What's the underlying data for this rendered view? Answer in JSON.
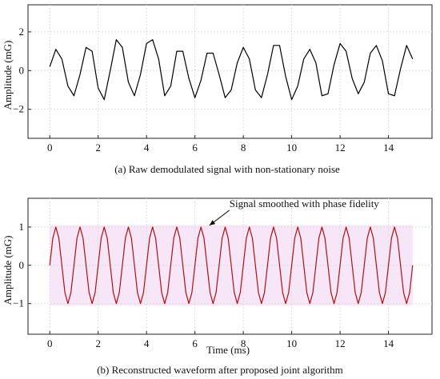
{
  "chart_data": [
    {
      "type": "line",
      "title": "",
      "caption": "(a) Raw demodulated signal with non-stationary noise",
      "xlabel": "",
      "ylabel": "Amplitude (mG)",
      "xlim": [
        -0.9,
        15.8
      ],
      "ylim": [
        -3.5,
        3.4
      ],
      "xticks": [
        0,
        2,
        4,
        6,
        8,
        10,
        12,
        14
      ],
      "yticks": [
        -2,
        0,
        2
      ],
      "grid": true,
      "series": [
        {
          "color": "#000000",
          "x": [
            0,
            0.25,
            0.5,
            0.75,
            1,
            1.25,
            1.5,
            1.75,
            2,
            2.25,
            2.5,
            2.75,
            3,
            3.25,
            3.5,
            3.75,
            4,
            4.25,
            4.5,
            4.75,
            5,
            5.25,
            5.5,
            5.75,
            6,
            6.25,
            6.5,
            6.75,
            7,
            7.25,
            7.5,
            7.75,
            8,
            8.25,
            8.5,
            8.75,
            9,
            9.25,
            9.5,
            9.75,
            10,
            10.25,
            10.5,
            10.75,
            11,
            11.25,
            11.5,
            11.75,
            12,
            12.25,
            12.5,
            12.75,
            13,
            13.25,
            13.5,
            13.75,
            14,
            14.25,
            14.5,
            14.75,
            15
          ],
          "y": [
            0.2,
            1.1,
            0.6,
            -0.8,
            -1.3,
            -0.2,
            1.2,
            1.0,
            -0.9,
            -1.5,
            0.0,
            1.6,
            1.2,
            -0.6,
            -1.3,
            -0.2,
            1.4,
            1.6,
            0.6,
            -1.3,
            -0.8,
            1.0,
            1.0,
            -0.4,
            -1.4,
            -0.5,
            0.9,
            0.9,
            -0.2,
            -1.4,
            -1.0,
            0.4,
            1.2,
            0.6,
            -1.0,
            -1.4,
            -0.2,
            1.3,
            1.3,
            -0.3,
            -1.5,
            -0.8,
            0.6,
            1.1,
            0.4,
            -1.3,
            -1.2,
            0.3,
            1.4,
            1.0,
            -0.4,
            -1.2,
            -0.6,
            0.9,
            1.3,
            0.5,
            -1.2,
            -1.3,
            0.1,
            1.3,
            0.6
          ]
        }
      ]
    },
    {
      "type": "line",
      "title": "",
      "caption": "(b) Reconstructed waveform after proposed joint algorithm",
      "xlabel": "Time (ms)",
      "ylabel": "Amplitude (mG)",
      "xlim": [
        -0.9,
        15.8
      ],
      "ylim": [
        -1.8,
        1.75
      ],
      "xticks": [
        0,
        2,
        4,
        6,
        8,
        10,
        12,
        14
      ],
      "yticks": [
        -1,
        0,
        1
      ],
      "grid": true,
      "annotation": {
        "text": "Signal smoothed with phase fidelity",
        "x": 6.5,
        "y": 1.0
      },
      "series": [
        {
          "color": "#b01010",
          "x": [
            0,
            0.125,
            0.25,
            0.375,
            0.5,
            0.625,
            0.75,
            0.875,
            1,
            1.125,
            1.25,
            1.375,
            1.5,
            1.625,
            1.75,
            1.875,
            2,
            2.125,
            2.25,
            2.375,
            2.5,
            2.625,
            2.75,
            2.875,
            3,
            3.125,
            3.25,
            3.375,
            3.5,
            3.625,
            3.75,
            3.875,
            4,
            4.125,
            4.25,
            4.375,
            4.5,
            4.625,
            4.75,
            4.875,
            5,
            5.125,
            5.25,
            5.375,
            5.5,
            5.625,
            5.75,
            5.875,
            6,
            6.125,
            6.25,
            6.375,
            6.5,
            6.625,
            6.75,
            6.875,
            7,
            7.125,
            7.25,
            7.375,
            7.5,
            7.625,
            7.75,
            7.875,
            8,
            8.125,
            8.25,
            8.375,
            8.5,
            8.625,
            8.75,
            8.875,
            9,
            9.125,
            9.25,
            9.375,
            9.5,
            9.625,
            9.75,
            9.875,
            10,
            10.125,
            10.25,
            10.375,
            10.5,
            10.625,
            10.75,
            10.875,
            11,
            11.125,
            11.25,
            11.375,
            11.5,
            11.625,
            11.75,
            11.875,
            12,
            12.125,
            12.25,
            12.375,
            12.5,
            12.625,
            12.75,
            12.875,
            13,
            13.125,
            13.25,
            13.375,
            13.5,
            13.625,
            13.75,
            13.875,
            14,
            14.125,
            14.25,
            14.375,
            14.5,
            14.625,
            14.75,
            14.875,
            15
          ],
          "y": [
            0.0,
            0.71,
            1.0,
            0.71,
            0.0,
            -0.71,
            -1.0,
            -0.71,
            0.0,
            0.71,
            1.0,
            0.71,
            0.0,
            -0.71,
            -1.0,
            -0.71,
            0.0,
            0.71,
            1.0,
            0.71,
            0.0,
            -0.71,
            -1.0,
            -0.71,
            0.0,
            0.71,
            1.0,
            0.71,
            0.0,
            -0.71,
            -1.0,
            -0.71,
            0.0,
            0.71,
            1.0,
            0.71,
            0.0,
            -0.71,
            -1.0,
            -0.71,
            0.0,
            0.71,
            1.0,
            0.71,
            0.0,
            -0.71,
            -1.0,
            -0.71,
            0.0,
            0.71,
            1.0,
            0.71,
            0.0,
            -0.71,
            -1.0,
            -0.71,
            0.0,
            0.71,
            1.0,
            0.71,
            0.0,
            -0.71,
            -1.0,
            -0.71,
            0.0,
            0.71,
            1.0,
            0.71,
            0.0,
            -0.71,
            -1.0,
            -0.71,
            0.0,
            0.71,
            1.0,
            0.71,
            0.0,
            -0.71,
            -1.0,
            -0.71,
            0.0,
            0.71,
            1.0,
            0.71,
            0.0,
            -0.71,
            -1.0,
            -0.71,
            0.0,
            0.71,
            1.0,
            0.71,
            0.0,
            -0.71,
            -1.0,
            -0.71,
            0.0,
            0.71,
            1.0,
            0.71,
            0.0,
            -0.71,
            -1.0,
            -0.71,
            0.0,
            0.71,
            1.0,
            0.71,
            0.0,
            -0.71,
            -1.0,
            -0.71,
            0.0,
            0.71,
            1.0,
            0.71,
            0.0,
            -0.71,
            -1.0,
            -0.71,
            0.0
          ]
        }
      ]
    }
  ],
  "colors": {
    "axis": "#222222",
    "grid": "#dddddd",
    "raw_signal": "#000000",
    "reconstructed_signal": "#b01010",
    "background_band": "#f7e6f7"
  }
}
